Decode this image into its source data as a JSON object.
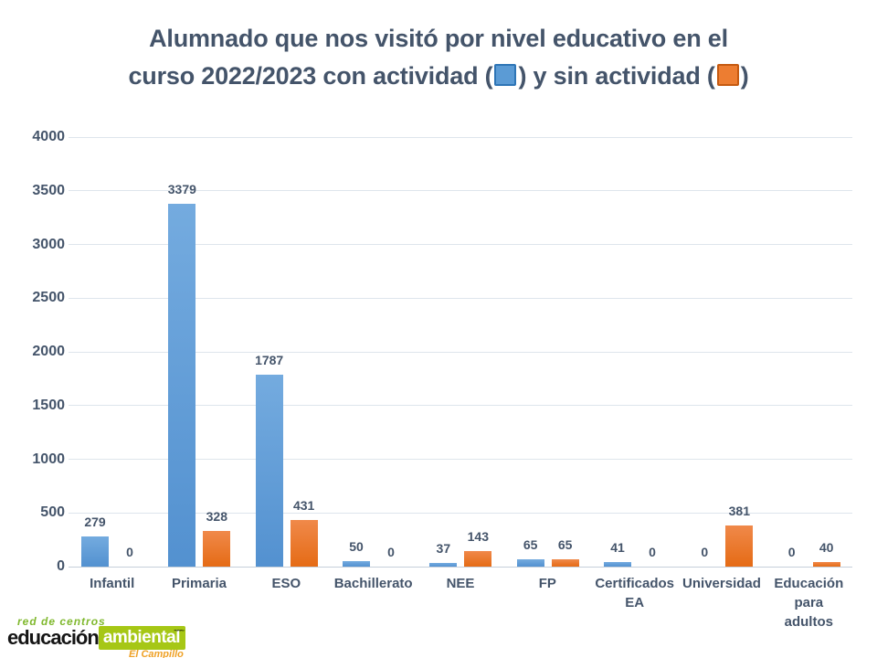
{
  "title": {
    "line1": "Alumnado que nos visitó por nivel educativo en el",
    "line2_before": "curso 2022/2023 con actividad (",
    "line2_between": ") y sin actividad (",
    "line2_after": ")"
  },
  "colors": {
    "title_text": "#44546A",
    "axis_text": "#44546A",
    "data_label_text": "#44546A",
    "gridline": "#DEE5EC",
    "axis_line": "#C5CFDA",
    "blue_fill": "#5B9BD5",
    "blue_border": "#2E75B6",
    "orange_fill": "#ED7D31",
    "orange_border": "#C55A11"
  },
  "chart_data": {
    "type": "bar",
    "title": "Alumnado que nos visitó por nivel educativo en el curso 2022/2023 con actividad (azul) y sin actividad (naranja)",
    "categories": [
      "Infantil",
      "Primaria",
      "ESO",
      "Bachillerato",
      "NEE",
      "FP",
      "Certificados EA",
      "Universidad",
      "Educación para adultos"
    ],
    "categories_display": [
      "Infantil",
      "Primaria",
      "ESO",
      "Bachillerato",
      "NEE",
      "FP",
      "Certificados\nEA",
      "Universidad",
      "Educación\npara\nadultos"
    ],
    "series": [
      {
        "name": "con actividad",
        "color": "#5B9BD5",
        "values": [
          279,
          3379,
          1787,
          50,
          37,
          65,
          41,
          0,
          0
        ]
      },
      {
        "name": "sin actividad",
        "color": "#ED7D31",
        "values": [
          0,
          328,
          431,
          0,
          143,
          65,
          0,
          381,
          40
        ]
      }
    ],
    "xlabel": "",
    "ylabel": "",
    "ylim": [
      0,
      4000
    ],
    "yticks": [
      0,
      500,
      1000,
      1500,
      2000,
      2500,
      3000,
      3500,
      4000
    ],
    "grid": true,
    "legend_position": "inline-in-title",
    "data_labels": true
  },
  "logo": {
    "network": "red de centros",
    "educacion": "educación",
    "ambiental": "ambiental",
    "waves_icon": "~~~",
    "site": "El Campillo"
  }
}
